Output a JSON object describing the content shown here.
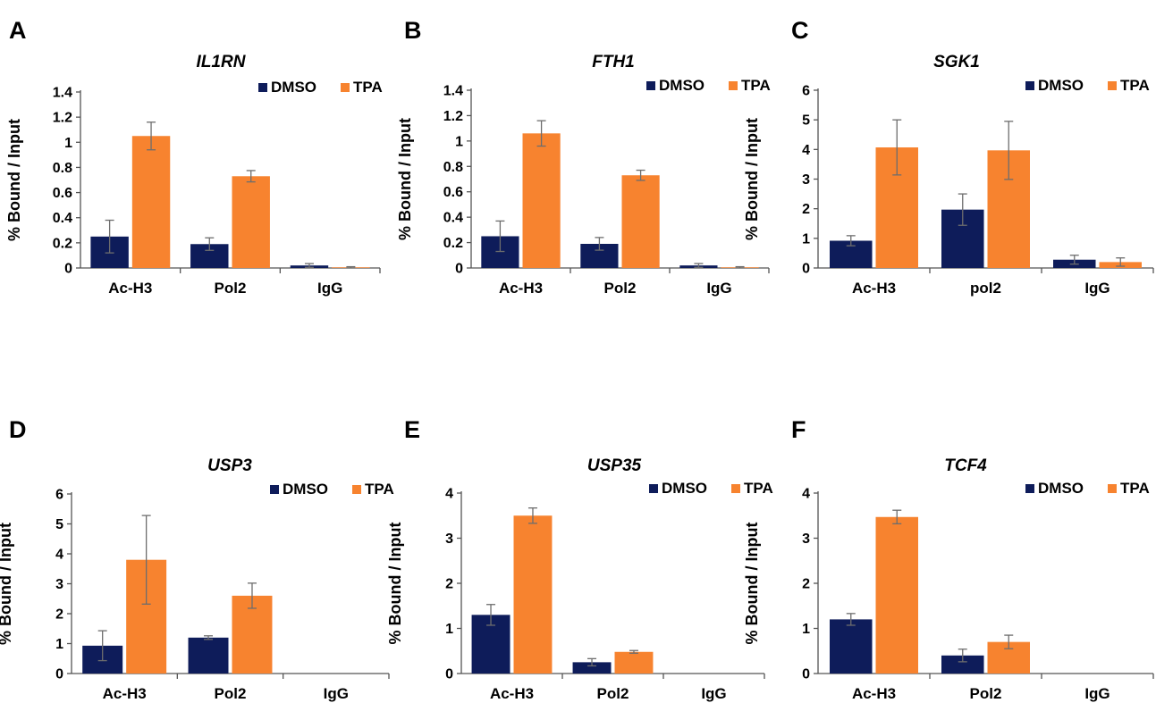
{
  "colors": {
    "DMSO": "#0e1c5a",
    "TPA": "#f7832f"
  },
  "chart_data": [
    {
      "panel": "A",
      "type": "bar",
      "title": "IL1RN",
      "ylabel": "% Bound / Input",
      "ylim": [
        0,
        1.4
      ],
      "yticks": [
        "0",
        "0.2",
        "0.4",
        "0.6",
        "0.8",
        "1",
        "1.2",
        "1.4"
      ],
      "categories": [
        "Ac-H3",
        "Pol2",
        "IgG"
      ],
      "legend_position": "top-right",
      "series": [
        {
          "name": "DMSO",
          "values": [
            0.25,
            0.19,
            0.02
          ],
          "errors": [
            0.13,
            0.05,
            0.015
          ]
        },
        {
          "name": "TPA",
          "values": [
            1.05,
            0.73,
            0.005
          ],
          "errors": [
            0.11,
            0.045,
            0.005
          ]
        }
      ]
    },
    {
      "panel": "B",
      "type": "bar",
      "title": "FTH1",
      "ylabel": "% Bound / Input",
      "ylim": [
        0,
        1.4
      ],
      "yticks": [
        "0",
        "0.2",
        "0.4",
        "0.6",
        "0.8",
        "1",
        "1.2",
        "1.4"
      ],
      "categories": [
        "Ac-H3",
        "Pol2",
        "IgG"
      ],
      "legend_position": "top-right",
      "series": [
        {
          "name": "DMSO",
          "values": [
            0.25,
            0.19,
            0.02
          ],
          "errors": [
            0.12,
            0.05,
            0.015
          ]
        },
        {
          "name": "TPA",
          "values": [
            1.06,
            0.73,
            0.005
          ],
          "errors": [
            0.1,
            0.04,
            0.005
          ]
        }
      ]
    },
    {
      "panel": "C",
      "type": "bar",
      "title": "SGK1",
      "ylabel": "% Bound / Input",
      "ylim": [
        0,
        6
      ],
      "yticks": [
        "0",
        "1",
        "2",
        "3",
        "4",
        "5",
        "6"
      ],
      "categories": [
        "Ac-H3",
        "pol2",
        "IgG"
      ],
      "legend_position": "top-right",
      "series": [
        {
          "name": "DMSO",
          "values": [
            0.92,
            1.97,
            0.28
          ],
          "errors": [
            0.17,
            0.53,
            0.15
          ]
        },
        {
          "name": "TPA",
          "values": [
            4.07,
            3.97,
            0.2
          ],
          "errors": [
            0.93,
            0.98,
            0.14
          ]
        }
      ]
    },
    {
      "panel": "D",
      "type": "bar",
      "title": "USP3",
      "ylabel": "% Bound / Input",
      "ylim": [
        0,
        6
      ],
      "yticks": [
        "0",
        "1",
        "2",
        "3",
        "4",
        "5",
        "6"
      ],
      "categories": [
        "Ac-H3",
        "Pol2",
        "IgG"
      ],
      "legend_position": "top-right",
      "series": [
        {
          "name": "DMSO",
          "values": [
            0.93,
            1.2,
            0
          ],
          "errors": [
            0.5,
            0.06,
            0
          ]
        },
        {
          "name": "TPA",
          "values": [
            3.8,
            2.6,
            0
          ],
          "errors": [
            1.48,
            0.42,
            0
          ]
        }
      ]
    },
    {
      "panel": "E",
      "type": "bar",
      "title": "USP35",
      "ylabel": "% Bound / Input",
      "ylim": [
        0,
        4
      ],
      "yticks": [
        "0",
        "1",
        "2",
        "3",
        "4"
      ],
      "categories": [
        "Ac-H3",
        "Pol2",
        "IgG"
      ],
      "legend_position": "top-right",
      "series": [
        {
          "name": "DMSO",
          "values": [
            1.3,
            0.25,
            0
          ],
          "errors": [
            0.23,
            0.08,
            0
          ]
        },
        {
          "name": "TPA",
          "values": [
            3.5,
            0.48,
            0
          ],
          "errors": [
            0.17,
            0.03,
            0
          ]
        }
      ]
    },
    {
      "panel": "F",
      "type": "bar",
      "title": "TCF4",
      "ylabel": "% Bound / Input",
      "ylim": [
        0,
        4
      ],
      "yticks": [
        "0",
        "1",
        "2",
        "3",
        "4"
      ],
      "categories": [
        "Ac-H3",
        "Pol2",
        "IgG"
      ],
      "legend_position": "top-right",
      "series": [
        {
          "name": "DMSO",
          "values": [
            1.2,
            0.4,
            0
          ],
          "errors": [
            0.13,
            0.14,
            0
          ]
        },
        {
          "name": "TPA",
          "values": [
            3.47,
            0.7,
            0
          ],
          "errors": [
            0.15,
            0.15,
            0
          ]
        }
      ]
    }
  ]
}
